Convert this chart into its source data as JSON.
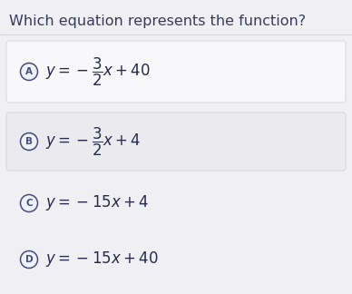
{
  "title": "Which equation represents the function?",
  "title_fontsize": 11.5,
  "title_color": "#3a3a5c",
  "background_color": "#e8e8ec",
  "top_bg_color": "#f0f0f4",
  "option_A": {
    "label": "A",
    "equation": "$y = -\\dfrac{3}{2}x + 40$",
    "box_color": "#f8f8fa",
    "has_box": true,
    "text_color": "#2a2a4a"
  },
  "option_B": {
    "label": "B",
    "equation": "$y = -\\dfrac{3}{2}x + 4$",
    "box_color": "#ebebef",
    "has_box": true,
    "text_color": "#2a2a4a"
  },
  "option_C": {
    "label": "C",
    "equation": "$y = -15x + 4$",
    "box_color": "#e8e8ec",
    "has_box": false,
    "text_color": "#2a2a4a"
  },
  "option_D": {
    "label": "D",
    "equation": "$y = -15x + 40$",
    "box_color": "#e8e8ec",
    "has_box": false,
    "text_color": "#2a2a4a"
  },
  "circle_edge_color": "#4a4a7a",
  "circle_face_color": "#f0f0f8",
  "circle_label_color": "#4a4a7a",
  "eq_fontsize": 12,
  "label_fontsize": 7.5
}
